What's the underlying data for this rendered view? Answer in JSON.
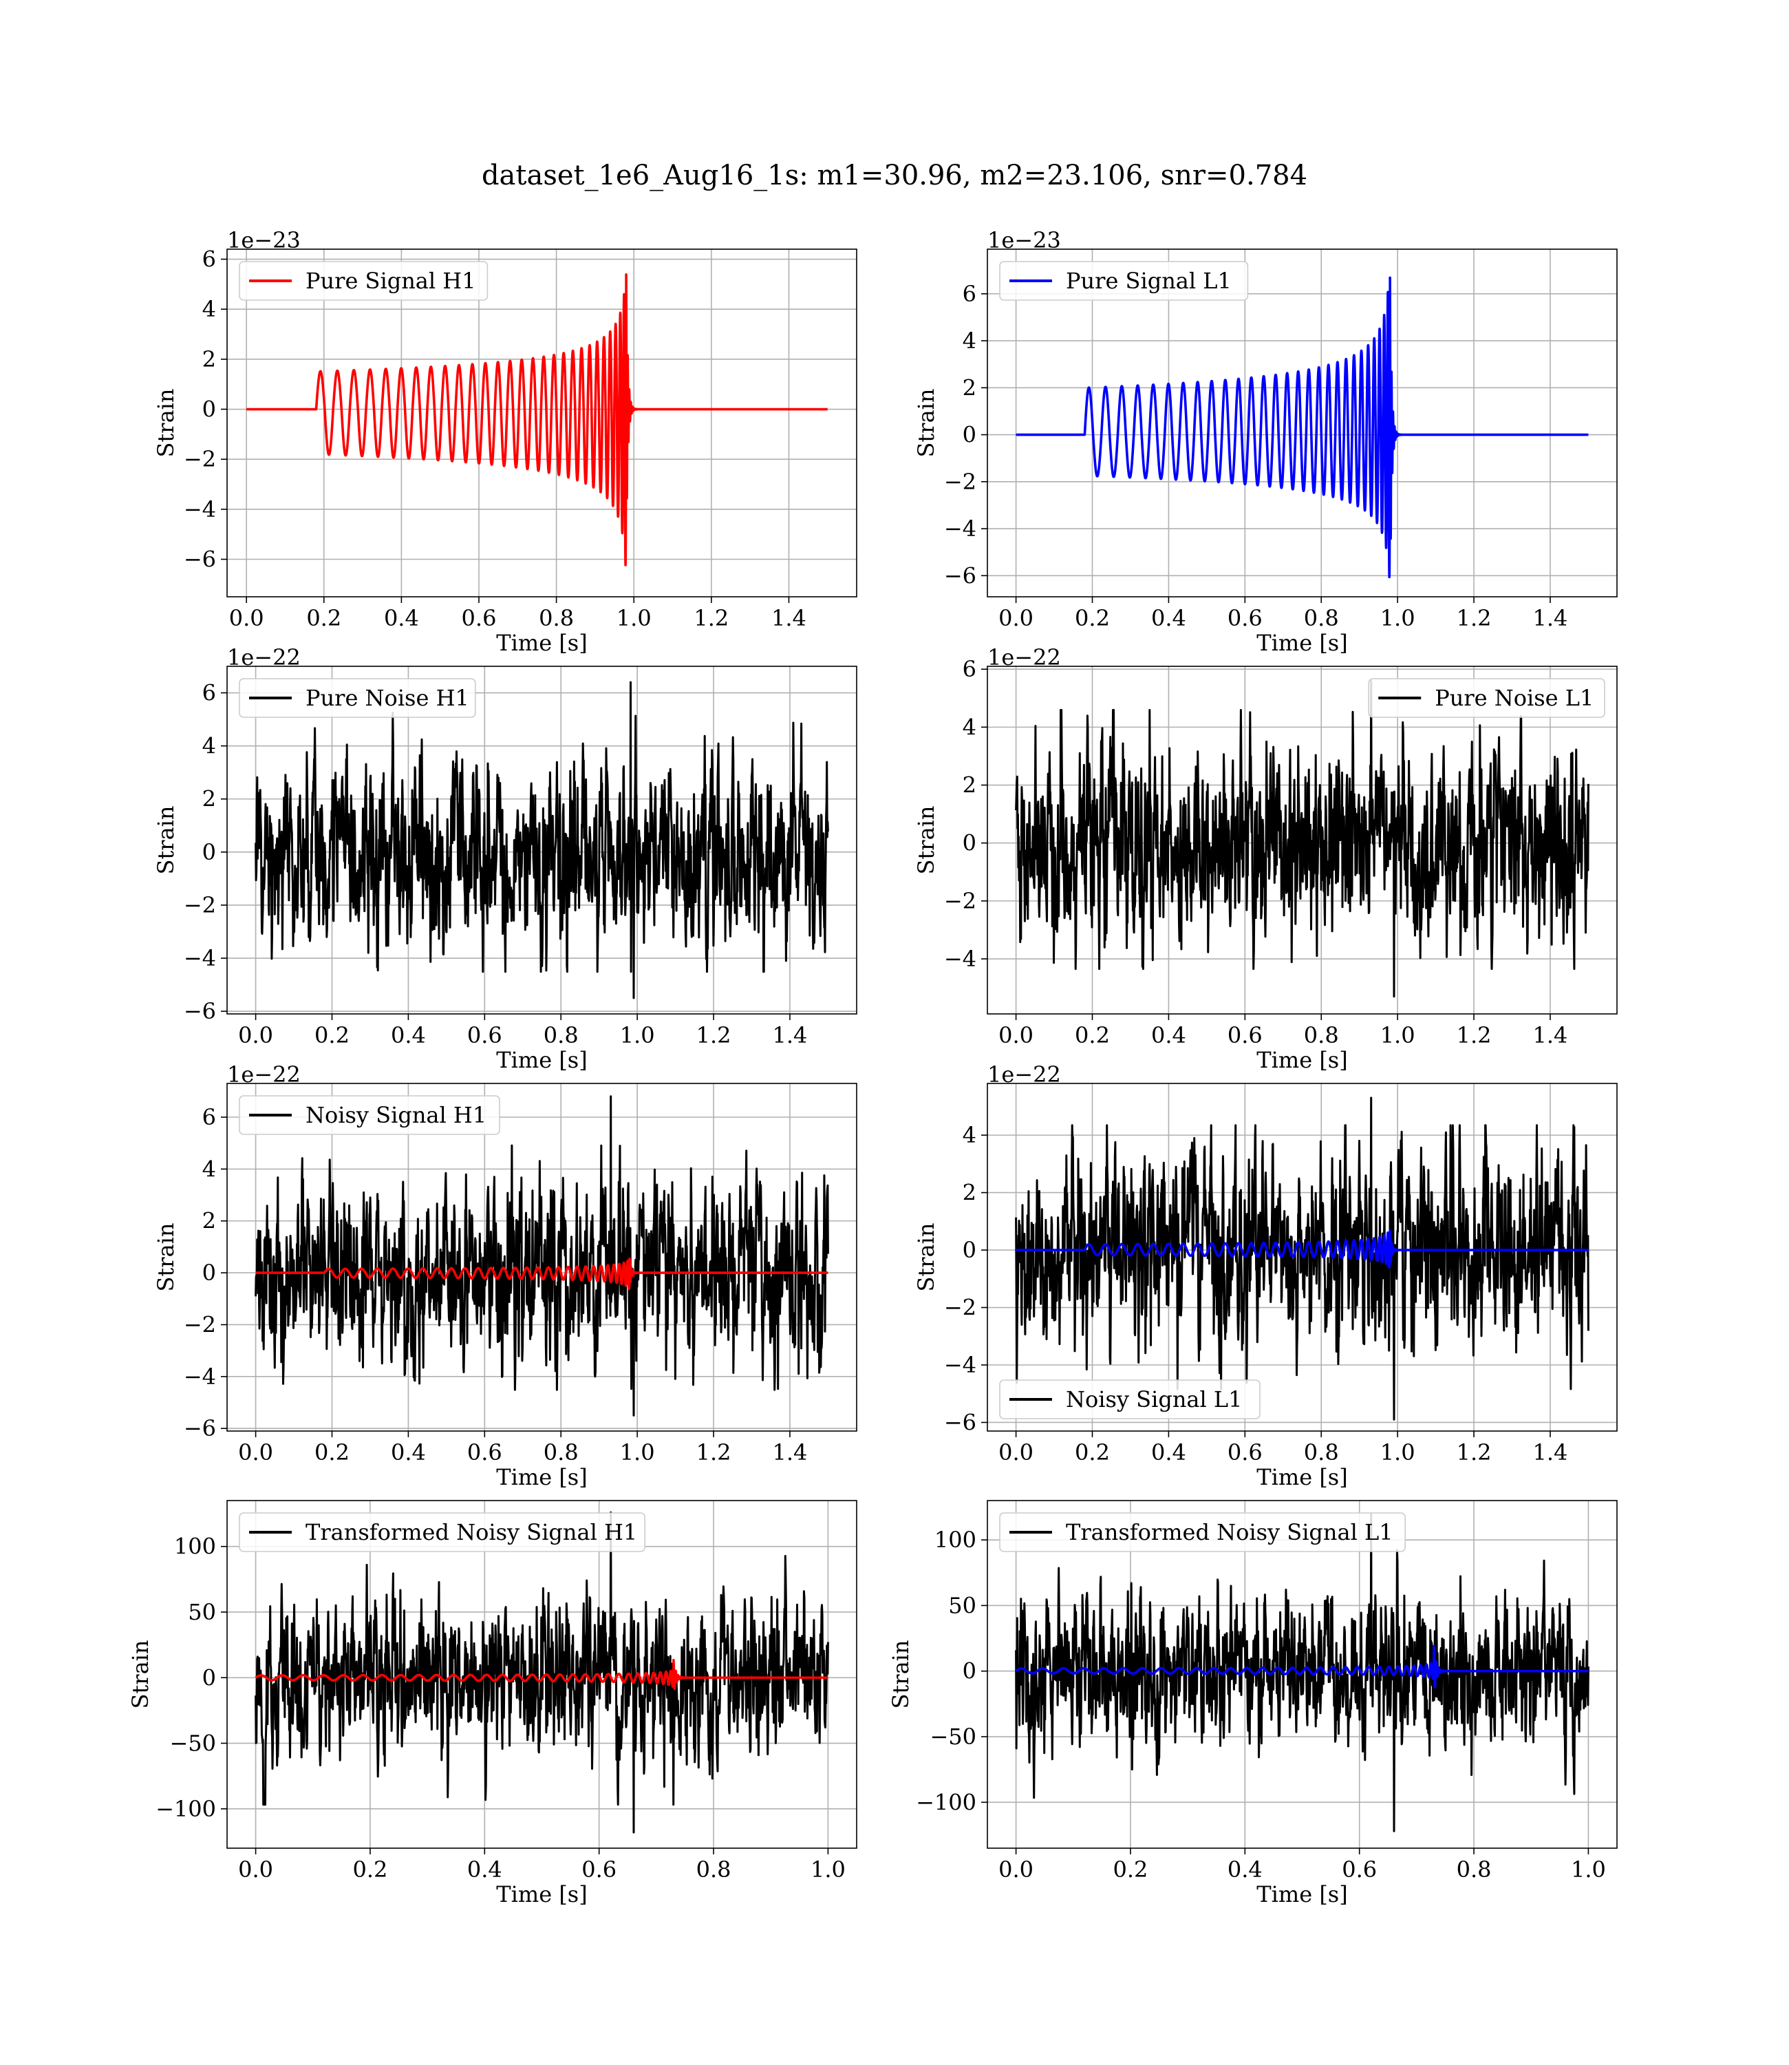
{
  "figure": {
    "suptitle": "dataset_1e6_Aug16_1s: m1=30.96, m2=23.106, snr=0.784"
  },
  "colors": {
    "h1": "#ff0000",
    "l1": "#0000ff",
    "noise": "#000000",
    "grid": "#b0b0b0"
  },
  "chart_data": [
    {
      "type": "line",
      "row": 0,
      "col": 0,
      "kind": "signal",
      "detector": "H1",
      "xlabel": "Time [s]",
      "ylabel": "Strain",
      "offset_label": "1e−23",
      "xlim": [
        -0.05,
        1.575
      ],
      "ylim": [
        -7.5,
        6.4
      ],
      "xticks": [
        0.0,
        0.2,
        0.4,
        0.6,
        0.8,
        1.0,
        1.2,
        1.4
      ],
      "xtick_labels": [
        "0.0",
        "0.2",
        "0.4",
        "0.6",
        "0.8",
        "1.0",
        "1.2",
        "1.4"
      ],
      "yticks": [
        -6,
        -4,
        -2,
        0,
        2,
        4,
        6
      ],
      "ytick_labels": [
        "−6",
        "−4",
        "−2",
        "0",
        "2",
        "4",
        "6"
      ],
      "grid": true,
      "legend_position": "upper-left",
      "signal": {
        "x_start": 0.0,
        "x_end": 1.5,
        "onset": 0.18,
        "merger": 0.98,
        "base_amp": 1.8,
        "peak_max": 5.8,
        "peak_min": -6.9,
        "n_cycles": 28
      },
      "series": [
        {
          "name": "Pure Signal H1",
          "color": "#ff0000",
          "role": "signal"
        }
      ]
    },
    {
      "type": "line",
      "row": 0,
      "col": 1,
      "kind": "signal",
      "detector": "L1",
      "xlabel": "Time [s]",
      "ylabel": "Strain",
      "offset_label": "1e−23",
      "xlim": [
        -0.075,
        1.575
      ],
      "ylim": [
        -6.9,
        7.9
      ],
      "xticks": [
        0.0,
        0.2,
        0.4,
        0.6,
        0.8,
        1.0,
        1.2,
        1.4
      ],
      "xtick_labels": [
        "0.0",
        "0.2",
        "0.4",
        "0.6",
        "0.8",
        "1.0",
        "1.2",
        "1.4"
      ],
      "yticks": [
        -6,
        -4,
        -2,
        0,
        2,
        4,
        6
      ],
      "ytick_labels": [
        "−6",
        "−4",
        "−2",
        "0",
        "2",
        "4",
        "6"
      ],
      "grid": true,
      "legend_position": "upper-left",
      "signal": {
        "x_start": 0.0,
        "x_end": 1.5,
        "onset": 0.18,
        "merger": 0.98,
        "base_amp": 2.0,
        "peak_max": 7.2,
        "peak_min": -6.3,
        "n_cycles": 28
      },
      "series": [
        {
          "name": "Pure Signal L1",
          "color": "#0000ff",
          "role": "signal"
        }
      ]
    },
    {
      "type": "line",
      "row": 1,
      "col": 0,
      "kind": "noise",
      "detector": "H1",
      "xlabel": "Time [s]",
      "ylabel": "Strain",
      "offset_label": "1e−22",
      "xlim": [
        -0.075,
        1.575
      ],
      "ylim": [
        -6.1,
        7.0
      ],
      "xticks": [
        0.0,
        0.2,
        0.4,
        0.6,
        0.8,
        1.0,
        1.2,
        1.4
      ],
      "xtick_labels": [
        "0.0",
        "0.2",
        "0.4",
        "0.6",
        "0.8",
        "1.0",
        "1.2",
        "1.4"
      ],
      "yticks": [
        -6,
        -4,
        -2,
        0,
        2,
        4,
        6
      ],
      "ytick_labels": [
        "−6",
        "−4",
        "−2",
        "0",
        "2",
        "4",
        "6"
      ],
      "grid": true,
      "legend_position": "upper-left",
      "noise": {
        "x_start": 0.0,
        "x_end": 1.5,
        "max": 6.4,
        "min": -5.5,
        "typical": 1.5
      },
      "series": [
        {
          "name": "Pure Noise H1",
          "color": "#000000",
          "role": "noise"
        }
      ]
    },
    {
      "type": "line",
      "row": 1,
      "col": 1,
      "kind": "noise",
      "detector": "L1",
      "xlabel": "Time [s]",
      "ylabel": "Strain",
      "offset_label": "1e−22",
      "xlim": [
        -0.075,
        1.575
      ],
      "ylim": [
        -5.9,
        6.1
      ],
      "xticks": [
        0.0,
        0.2,
        0.4,
        0.6,
        0.8,
        1.0,
        1.2,
        1.4
      ],
      "xtick_labels": [
        "0.0",
        "0.2",
        "0.4",
        "0.6",
        "0.8",
        "1.0",
        "1.2",
        "1.4"
      ],
      "yticks": [
        -4,
        -2,
        0,
        2,
        4,
        6
      ],
      "ytick_labels": [
        "−4",
        "−2",
        "0",
        "2",
        "4",
        "6"
      ],
      "grid": true,
      "legend_position": "upper-right",
      "noise": {
        "x_start": 0.0,
        "x_end": 1.5,
        "max": 5.6,
        "min": -5.3,
        "typical": 1.5
      },
      "series": [
        {
          "name": "Pure Noise L1",
          "color": "#000000",
          "role": "noise"
        }
      ]
    },
    {
      "type": "line",
      "row": 2,
      "col": 0,
      "kind": "noisy",
      "detector": "H1",
      "xlabel": "Time [s]",
      "ylabel": "Strain",
      "offset_label": "1e−22",
      "xlim": [
        -0.075,
        1.575
      ],
      "ylim": [
        -6.1,
        7.3
      ],
      "xticks": [
        0.0,
        0.2,
        0.4,
        0.6,
        0.8,
        1.0,
        1.2,
        1.4
      ],
      "xtick_labels": [
        "0.0",
        "0.2",
        "0.4",
        "0.6",
        "0.8",
        "1.0",
        "1.2",
        "1.4"
      ],
      "yticks": [
        -6,
        -4,
        -2,
        0,
        2,
        4,
        6
      ],
      "ytick_labels": [
        "−6",
        "−4",
        "−2",
        "0",
        "2",
        "4",
        "6"
      ],
      "grid": true,
      "legend_position": "upper-left",
      "noise": {
        "x_start": 0.0,
        "x_end": 1.5,
        "max": 6.8,
        "min": -5.5,
        "typical": 1.5
      },
      "signal": {
        "x_start": 0.0,
        "x_end": 1.5,
        "onset": 0.18,
        "merger": 0.98,
        "base_amp": 0.18,
        "peak_max": 0.58,
        "peak_min": -0.69,
        "n_cycles": 28
      },
      "series": [
        {
          "name": "Noisy Signal H1",
          "color": "#000000",
          "role": "noise"
        },
        {
          "name": "",
          "color": "#ff0000",
          "role": "signal"
        }
      ]
    },
    {
      "type": "line",
      "row": 2,
      "col": 1,
      "kind": "noisy",
      "detector": "L1",
      "xlabel": "Time [s]",
      "ylabel": "Strain",
      "offset_label": "1e−22",
      "xlim": [
        -0.075,
        1.575
      ],
      "ylim": [
        -6.3,
        5.8
      ],
      "xticks": [
        0.0,
        0.2,
        0.4,
        0.6,
        0.8,
        1.0,
        1.2,
        1.4
      ],
      "xtick_labels": [
        "0.0",
        "0.2",
        "0.4",
        "0.6",
        "0.8",
        "1.0",
        "1.2",
        "1.4"
      ],
      "yticks": [
        -6,
        -4,
        -2,
        0,
        2,
        4
      ],
      "ytick_labels": [
        "−6",
        "−4",
        "−2",
        "0",
        "2",
        "4"
      ],
      "grid": true,
      "legend_position": "lower-left",
      "noise": {
        "x_start": 0.0,
        "x_end": 1.5,
        "max": 5.3,
        "min": -5.9,
        "typical": 1.5
      },
      "signal": {
        "x_start": 0.0,
        "x_end": 1.5,
        "onset": 0.18,
        "merger": 0.98,
        "base_amp": 0.2,
        "peak_max": 0.72,
        "peak_min": -0.63,
        "n_cycles": 28
      },
      "series": [
        {
          "name": "Noisy Signal L1",
          "color": "#000000",
          "role": "noise"
        },
        {
          "name": "",
          "color": "#0000ff",
          "role": "signal"
        }
      ]
    },
    {
      "type": "line",
      "row": 3,
      "col": 0,
      "kind": "noisy",
      "detector": "H1",
      "xlabel": "Time [s]",
      "ylabel": "Strain",
      "offset_label": "",
      "xlim": [
        -0.05,
        1.05
      ],
      "ylim": [
        -130,
        135
      ],
      "xticks": [
        0.0,
        0.2,
        0.4,
        0.6,
        0.8,
        1.0
      ],
      "xtick_labels": [
        "0.0",
        "0.2",
        "0.4",
        "0.6",
        "0.8",
        "1.0"
      ],
      "yticks": [
        -100,
        -50,
        0,
        50,
        100
      ],
      "ytick_labels": [
        "−100",
        "−50",
        "0",
        "50",
        "100"
      ],
      "grid": true,
      "legend_position": "upper-left",
      "noise": {
        "x_start": 0.0,
        "x_end": 1.0,
        "max": 126,
        "min": -118,
        "typical": 25
      },
      "signal": {
        "x_start": 0.0,
        "x_end": 1.0,
        "onset": 0.0,
        "merger": 0.73,
        "base_amp": 2.0,
        "peak_max": 14,
        "peak_min": -16,
        "n_cycles": 30
      },
      "series": [
        {
          "name": "Transformed Noisy Signal H1",
          "color": "#000000",
          "role": "noise"
        },
        {
          "name": "",
          "color": "#ff0000",
          "role": "signal"
        }
      ]
    },
    {
      "type": "line",
      "row": 3,
      "col": 1,
      "kind": "noisy",
      "detector": "L1",
      "xlabel": "Time [s]",
      "ylabel": "Strain",
      "offset_label": "",
      "xlim": [
        -0.05,
        1.05
      ],
      "ylim": [
        -135,
        130
      ],
      "xticks": [
        0.0,
        0.2,
        0.4,
        0.6,
        0.8,
        1.0
      ],
      "xtick_labels": [
        "0.0",
        "0.2",
        "0.4",
        "0.6",
        "0.8",
        "1.0"
      ],
      "yticks": [
        -100,
        -50,
        0,
        50,
        100
      ],
      "ytick_labels": [
        "−100",
        "−50",
        "0",
        "50",
        "100"
      ],
      "grid": true,
      "legend_position": "upper-left",
      "noise": {
        "x_start": 0.0,
        "x_end": 1.0,
        "max": 120,
        "min": -122,
        "typical": 25
      },
      "signal": {
        "x_start": 0.0,
        "x_end": 1.0,
        "onset": 0.0,
        "merger": 0.73,
        "base_amp": 2.0,
        "peak_max": 20,
        "peak_min": -17,
        "n_cycles": 30
      },
      "series": [
        {
          "name": "Transformed Noisy Signal L1",
          "color": "#000000",
          "role": "noise"
        },
        {
          "name": "",
          "color": "#0000ff",
          "role": "signal"
        }
      ]
    }
  ]
}
